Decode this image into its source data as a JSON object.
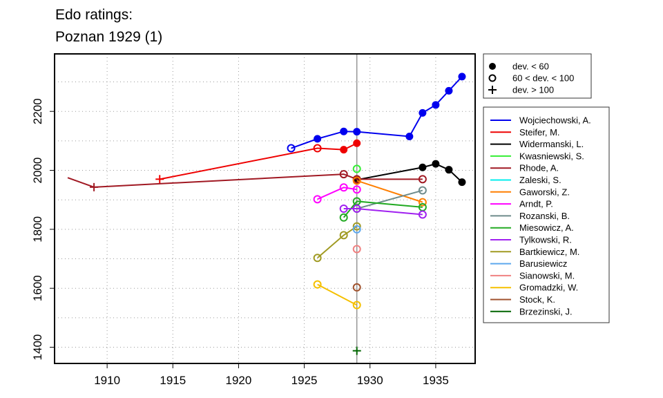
{
  "title_line1": "Edo ratings:",
  "title_line2": "Poznan 1929 (1)",
  "chart_data": {
    "type": "line",
    "xlim": [
      1906,
      1938
    ],
    "ylim": [
      1345,
      2395
    ],
    "x_ticks": [
      1910,
      1915,
      1920,
      1925,
      1930,
      1935
    ],
    "y_ticks": [
      1400,
      1600,
      1800,
      2000,
      2200
    ],
    "y_grid": [
      1300,
      1400,
      1500,
      1600,
      1700,
      1800,
      1900,
      2000,
      2100,
      2200,
      2300
    ],
    "x_grid": [
      1905,
      1910,
      1915,
      1920,
      1925,
      1930,
      1935
    ],
    "grid": true,
    "vline": 1929,
    "marker_legend": [
      {
        "label": "dev. < 60",
        "marker": "filled"
      },
      {
        "label": "60 < dev. < 100",
        "marker": "open"
      },
      {
        "label": "dev. > 100",
        "marker": "plus"
      }
    ],
    "series": [
      {
        "name": "Wojciechowski, A.",
        "color": "#0000ee",
        "points": [
          [
            1924,
            2075,
            "open"
          ],
          [
            1926,
            2107,
            "filled"
          ],
          [
            1928,
            2132,
            "filled"
          ],
          [
            1929,
            2131,
            "filled"
          ],
          [
            1933,
            2115,
            "filled"
          ],
          [
            1934,
            2195,
            "filled"
          ],
          [
            1935,
            2222,
            "filled"
          ],
          [
            1936,
            2270,
            "filled"
          ],
          [
            1937,
            2318,
            "filled"
          ]
        ]
      },
      {
        "name": "Steifer, M.",
        "color": "#ee0000",
        "points": [
          [
            1914,
            1970,
            "plus"
          ],
          [
            1926,
            2075,
            "open"
          ],
          [
            1928,
            2070,
            "filled"
          ],
          [
            1929,
            2092,
            "filled"
          ]
        ]
      },
      {
        "name": "Widermanski, L.",
        "color": "#000000",
        "points": [
          [
            1929,
            1968,
            "filled"
          ],
          [
            1934,
            2010,
            "filled"
          ],
          [
            1935,
            2022,
            "filled"
          ],
          [
            1936,
            2002,
            "filled"
          ],
          [
            1937,
            1960,
            "filled"
          ]
        ]
      },
      {
        "name": "Kwasniewski, S.",
        "color": "#33ee33",
        "points": [
          [
            1929,
            2005,
            "open"
          ]
        ]
      },
      {
        "name": "Rhode, A.",
        "color": "#a01822",
        "dash_from": [
          1907,
          1975
        ],
        "points": [
          [
            1909,
            1943,
            "plus"
          ],
          [
            1928,
            1987,
            "open"
          ],
          [
            1929,
            1970,
            "open"
          ],
          [
            1934,
            1970,
            "open"
          ]
        ]
      },
      {
        "name": "Zaleski, S.",
        "color": "#00eeee",
        "points": []
      },
      {
        "name": "Gaworski, Z.",
        "color": "#ff7f00",
        "points": [
          [
            1929,
            1965,
            "open"
          ],
          [
            1934,
            1892,
            "open"
          ]
        ]
      },
      {
        "name": "Arndt, P.",
        "color": "#ff00ff",
        "points": [
          [
            1926,
            1902,
            "open"
          ],
          [
            1928,
            1942,
            "open"
          ],
          [
            1929,
            1935,
            "open"
          ]
        ]
      },
      {
        "name": "Rozanski, B.",
        "color": "#6e8b8b",
        "points": [
          [
            1929,
            1870,
            "open"
          ],
          [
            1934,
            1932,
            "open"
          ]
        ]
      },
      {
        "name": "Miesowicz, A.",
        "color": "#22aa22",
        "points": [
          [
            1928,
            1840,
            "open"
          ],
          [
            1929,
            1895,
            "open"
          ],
          [
            1934,
            1875,
            "open"
          ]
        ]
      },
      {
        "name": "Tylkowski, R.",
        "color": "#a020f0",
        "points": [
          [
            1928,
            1870,
            "open"
          ],
          [
            1929,
            1870,
            "open"
          ],
          [
            1934,
            1850,
            "open"
          ]
        ]
      },
      {
        "name": "Bartkiewicz, M.",
        "color": "#a09a22",
        "points": [
          [
            1926,
            1703,
            "open"
          ],
          [
            1928,
            1780,
            "open"
          ],
          [
            1929,
            1810,
            "open"
          ]
        ]
      },
      {
        "name": "Barusiewicz",
        "color": "#5ca8ee",
        "points": [
          [
            1929,
            1800,
            "open"
          ]
        ]
      },
      {
        "name": "Sianowski, M.",
        "color": "#f08080",
        "points": [
          [
            1929,
            1733,
            "open"
          ]
        ]
      },
      {
        "name": "Gromadzki, W.",
        "color": "#f5c000",
        "points": [
          [
            1926,
            1613,
            "open"
          ],
          [
            1929,
            1543,
            "open"
          ]
        ]
      },
      {
        "name": "Stock, K.",
        "color": "#a0522d",
        "points": [
          [
            1929,
            1603,
            "open"
          ]
        ]
      },
      {
        "name": "Brzezinski, J.",
        "color": "#006400",
        "points": [
          [
            1929,
            1388,
            "plus"
          ]
        ]
      }
    ]
  }
}
